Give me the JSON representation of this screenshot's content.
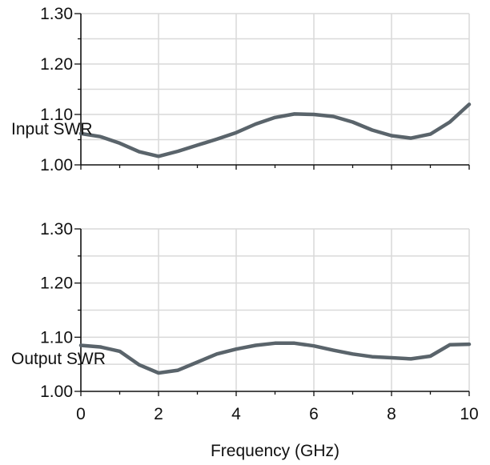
{
  "chart_data": [
    {
      "type": "line",
      "series_label": "Input SWR",
      "xlim": [
        0,
        10
      ],
      "ylim": [
        1.0,
        1.3
      ],
      "y_ticks": [
        "1.00",
        "1.10",
        "1.20",
        "1.30"
      ],
      "x_ticks": [],
      "grid": true,
      "line_color": "#5a646b",
      "series": [
        {
          "x": [
            0,
            0.5,
            1.0,
            1.5,
            2.0,
            2.5,
            3.0,
            3.5,
            4.0,
            4.5,
            5.0,
            5.5,
            6.0,
            6.5,
            7.0,
            7.5,
            8.0,
            8.5,
            9.0,
            9.5,
            10.0
          ],
          "values": [
            1.062,
            1.056,
            1.043,
            1.026,
            1.017,
            1.027,
            1.039,
            1.051,
            1.064,
            1.081,
            1.094,
            1.101,
            1.1,
            1.096,
            1.085,
            1.069,
            1.058,
            1.053,
            1.061,
            1.085,
            1.12
          ]
        }
      ]
    },
    {
      "type": "line",
      "series_label": "Output SWR",
      "xlim": [
        0,
        10
      ],
      "ylim": [
        1.0,
        1.3
      ],
      "y_ticks": [
        "1.00",
        "1.10",
        "1.20",
        "1.30"
      ],
      "x_ticks": [
        "0",
        "2",
        "4",
        "6",
        "8",
        "10"
      ],
      "xlabel": "Frequency (GHz)",
      "grid": true,
      "line_color": "#5a646b",
      "series": [
        {
          "x": [
            0,
            0.5,
            1.0,
            1.5,
            2.0,
            2.5,
            3.0,
            3.5,
            4.0,
            4.5,
            5.0,
            5.5,
            6.0,
            6.5,
            7.0,
            7.5,
            8.0,
            8.5,
            9.0,
            9.5,
            10.0
          ],
          "values": [
            1.085,
            1.082,
            1.074,
            1.049,
            1.034,
            1.039,
            1.054,
            1.069,
            1.078,
            1.085,
            1.089,
            1.089,
            1.084,
            1.076,
            1.069,
            1.064,
            1.062,
            1.06,
            1.065,
            1.086,
            1.087
          ]
        }
      ]
    }
  ]
}
